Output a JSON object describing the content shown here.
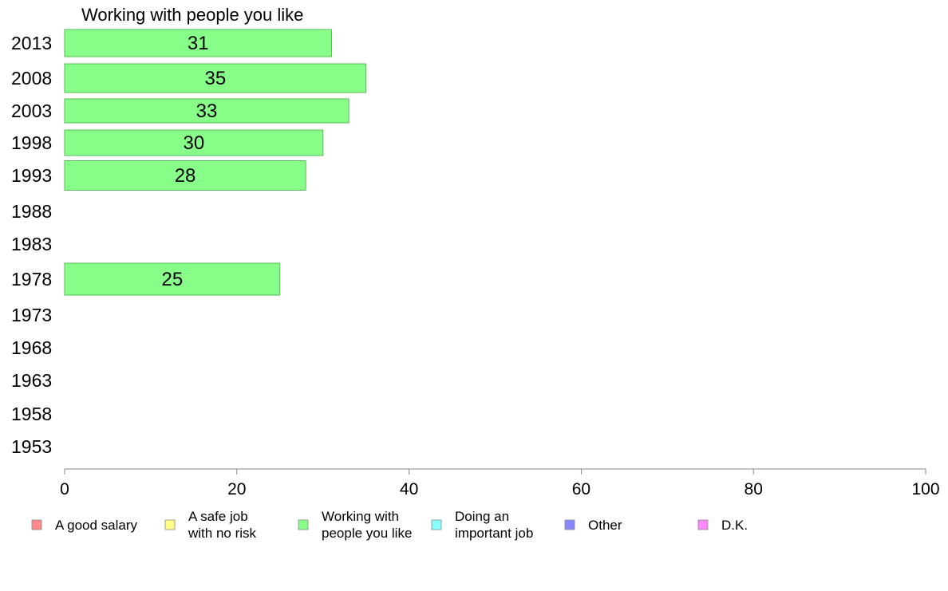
{
  "chart_data": {
    "type": "bar",
    "orientation": "horizontal",
    "title": "Working with people you like",
    "xlabel": "",
    "ylabel": "",
    "xlim": [
      0,
      100
    ],
    "x_ticks": [
      0,
      20,
      40,
      60,
      80,
      100
    ],
    "categories": [
      "2013",
      "2008",
      "2003",
      "1998",
      "1993",
      "1988",
      "1983",
      "1978",
      "1973",
      "1968",
      "1963",
      "1958",
      "1953"
    ],
    "series": [
      {
        "name": "Working with people you like",
        "color": "#88ff88",
        "values": [
          31,
          35,
          33,
          30,
          28,
          null,
          null,
          25,
          null,
          null,
          null,
          null,
          null
        ],
        "labels": [
          "31",
          "35",
          "33",
          "30",
          "28",
          "",
          "",
          "25",
          "",
          "",
          "",
          "",
          ""
        ]
      }
    ],
    "grid": false,
    "legend": {
      "position": "bottom",
      "items": [
        {
          "lines": [
            "A good salary"
          ],
          "color": "#ff8888"
        },
        {
          "lines": [
            "A safe job",
            "with no risk"
          ],
          "color": "#ffff88"
        },
        {
          "lines": [
            "Working with",
            "people you like"
          ],
          "color": "#88ff88"
        },
        {
          "lines": [
            "Doing an",
            "important job"
          ],
          "color": "#88ffff"
        },
        {
          "lines": [
            "Other"
          ],
          "color": "#8888ff"
        },
        {
          "lines": [
            "D.K."
          ],
          "color": "#ff88ff"
        }
      ]
    }
  }
}
